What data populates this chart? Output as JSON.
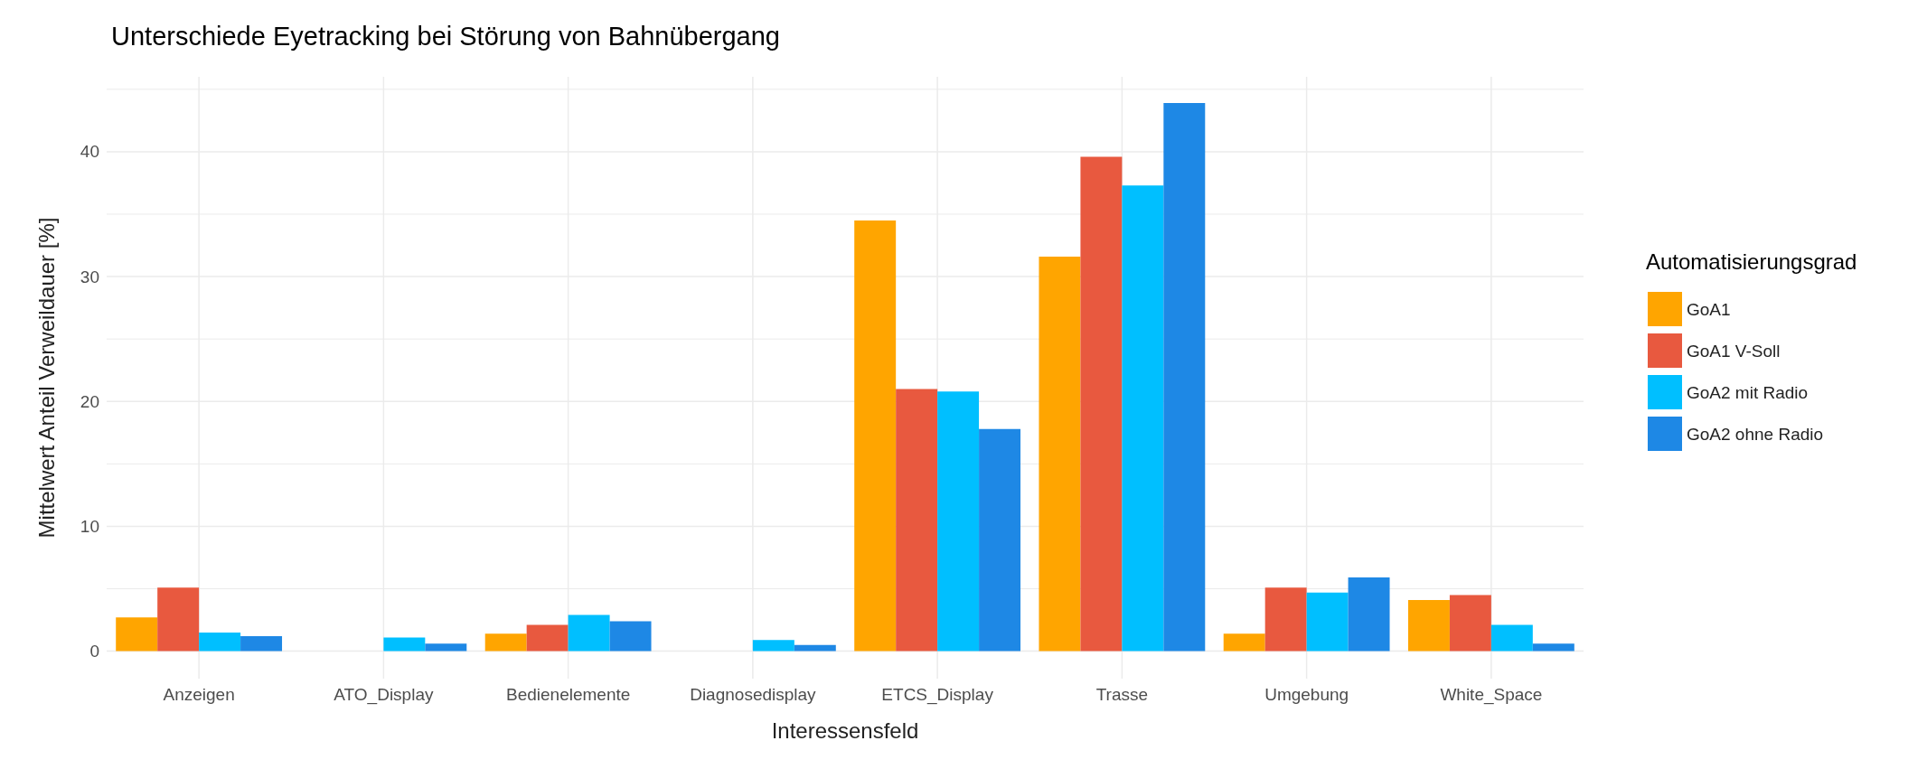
{
  "chart_data": {
    "type": "bar",
    "title": "Unterschiede Eyetracking bei Störung von Bahnübergang",
    "xlabel": "Interessensfeld",
    "ylabel": "Mittelwert Anteil Verweildauer [%]",
    "legend_title": "Automatisierungsgrad",
    "categories": [
      "Anzeigen",
      "ATO_Display",
      "Bedienelemente",
      "Diagnosedisplay",
      "ETCS_Display",
      "Trasse",
      "Umgebung",
      "White_Space"
    ],
    "series": [
      {
        "name": "GoA1",
        "color": "#ffa500",
        "values": [
          2.7,
          null,
          1.4,
          null,
          34.5,
          31.6,
          1.4,
          4.1
        ]
      },
      {
        "name": "GoA1 V-Soll",
        "color": "#e8593f",
        "values": [
          5.1,
          null,
          2.1,
          null,
          21.0,
          39.6,
          5.1,
          4.5
        ]
      },
      {
        "name": "GoA2 mit Radio",
        "color": "#00bfff",
        "values": [
          1.5,
          1.1,
          2.9,
          0.9,
          20.8,
          37.3,
          4.7,
          2.1
        ]
      },
      {
        "name": "GoA2 ohne Radio",
        "color": "#1e88e5",
        "values": [
          1.2,
          0.6,
          2.4,
          0.5,
          17.8,
          43.9,
          5.9,
          0.6
        ]
      }
    ],
    "ylim": [
      -2.2,
      46
    ],
    "yticks": [
      0,
      {
        "value": 5,
        "label": null
      },
      10,
      {
        "value": 15,
        "label": null
      },
      20,
      {
        "value": 25,
        "label": null
      },
      30,
      {
        "value": 35,
        "label": null
      },
      40,
      {
        "value": 45,
        "label": null
      }
    ],
    "grid": true,
    "legend": "right"
  }
}
